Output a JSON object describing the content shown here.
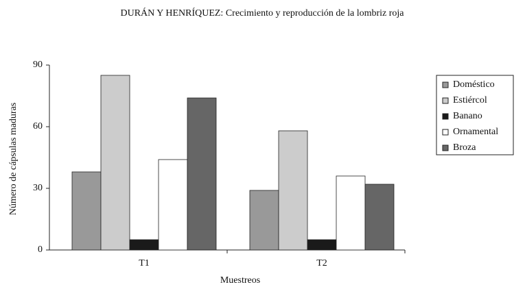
{
  "chart_data": {
    "type": "bar",
    "title": "DURÁN Y HENRÍQUEZ: Crecimiento y reproducción de la lombriz roja",
    "x_label": "Muestreos",
    "y_label": "Número de cápsulas maduras",
    "categories": [
      "T1",
      "T2"
    ],
    "series": [
      {
        "name": "Doméstico",
        "color": "#999999",
        "values": [
          38,
          29
        ]
      },
      {
        "name": "Estiércol",
        "color": "#cccccc",
        "values": [
          85,
          58
        ]
      },
      {
        "name": "Banano",
        "color": "#1a1a1a",
        "values": [
          5,
          5
        ]
      },
      {
        "name": "Ornamental",
        "color": "#ffffff",
        "values": [
          44,
          36
        ]
      },
      {
        "name": "Broza",
        "color": "#666666",
        "values": [
          74,
          32
        ]
      }
    ],
    "ylim": [
      0,
      90
    ],
    "yticks": [
      0,
      30,
      60,
      90
    ],
    "grid": false,
    "legend": "right"
  }
}
